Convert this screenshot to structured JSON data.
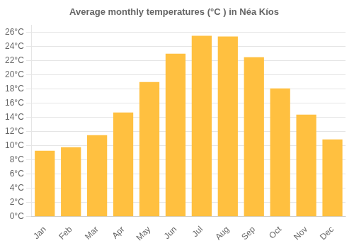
{
  "chart_data": {
    "type": "bar",
    "title": "Average monthly temperatures (°C ) in Néa Kíos",
    "categories": [
      "Jan",
      "Feb",
      "Mar",
      "Apr",
      "May",
      "Jun",
      "Jul",
      "Aug",
      "Sep",
      "Oct",
      "Nov",
      "Dec"
    ],
    "values": [
      9.3,
      9.8,
      11.5,
      14.7,
      19.0,
      23.0,
      25.5,
      25.4,
      22.5,
      18.1,
      14.4,
      10.9
    ],
    "color": "#FFC040",
    "ylim": [
      0,
      27
    ],
    "yticks": [
      {
        "value": 0,
        "label": "0°C"
      },
      {
        "value": 2,
        "label": "2°C"
      },
      {
        "value": 4,
        "label": "4°C"
      },
      {
        "value": 6,
        "label": "6°C"
      },
      {
        "value": 8,
        "label": "8°C"
      },
      {
        "value": 10,
        "label": "10°C"
      },
      {
        "value": 12,
        "label": "12°C"
      },
      {
        "value": 14,
        "label": "14°C"
      },
      {
        "value": 16,
        "label": "16°C"
      },
      {
        "value": 18,
        "label": "18°C"
      },
      {
        "value": 20,
        "label": "20°C"
      },
      {
        "value": 22,
        "label": "22°C"
      },
      {
        "value": 24,
        "label": "24°C"
      },
      {
        "value": 26,
        "label": "26°C"
      }
    ],
    "grid": true
  }
}
